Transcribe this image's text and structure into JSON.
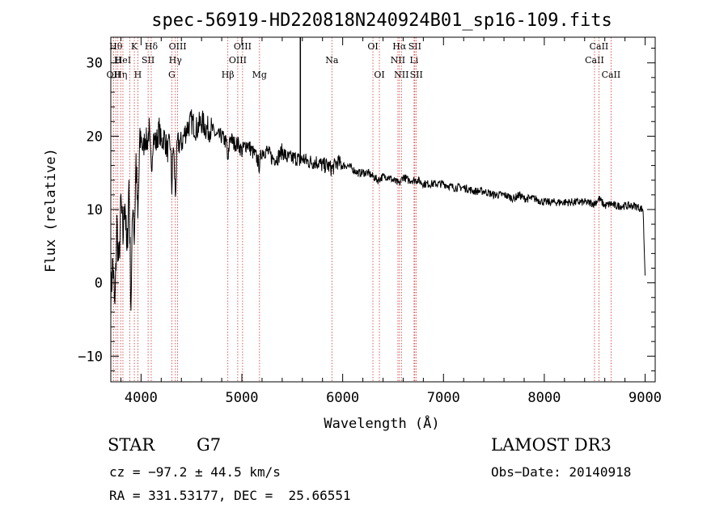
{
  "chart_data": {
    "type": "line",
    "title": "spec-56919-HD220818N240924B01_sp16-109.fits",
    "xlabel": "Wavelength (Å)",
    "ylabel": "Flux (relative)",
    "xlim": [
      3700,
      9100
    ],
    "ylim": [
      -13.5,
      33.5
    ],
    "xticks": [
      4000,
      5000,
      6000,
      7000,
      8000,
      9000
    ],
    "xtick_labels": [
      "4000",
      "5000",
      "6000",
      "7000",
      "8000",
      "9000"
    ],
    "yticks": [
      -10,
      0,
      10,
      20,
      30
    ],
    "ytick_labels": [
      "−10",
      "0",
      "10",
      "20",
      "30"
    ],
    "grid": false,
    "series": [
      {
        "name": "flux",
        "color": "#000000",
        "x": [
          3700,
          3720,
          3740,
          3760,
          3780,
          3800,
          3820,
          3840,
          3860,
          3880,
          3900,
          3920,
          3933,
          3950,
          3968,
          3985,
          4000,
          4020,
          4040,
          4060,
          4080,
          4101,
          4120,
          4150,
          4180,
          4200,
          4230,
          4260,
          4290,
          4305,
          4320,
          4340,
          4360,
          4400,
          4450,
          4500,
          4550,
          4600,
          4650,
          4700,
          4750,
          4800,
          4850,
          4861,
          4880,
          4920,
          4960,
          5000,
          5050,
          5100,
          5150,
          5172,
          5200,
          5250,
          5300,
          5350,
          5400,
          5450,
          5500,
          5550,
          5580,
          5600,
          5650,
          5700,
          5750,
          5800,
          5850,
          5893,
          5950,
          6000,
          6050,
          6100,
          6150,
          6200,
          6250,
          6300,
          6350,
          6400,
          6450,
          6500,
          6563,
          6600,
          6650,
          6700,
          6750,
          6800,
          6900,
          7000,
          7100,
          7200,
          7300,
          7400,
          7500,
          7600,
          7700,
          7750,
          7800,
          7900,
          8000,
          8100,
          8200,
          8300,
          8400,
          8498,
          8542,
          8600,
          8662,
          8700,
          8800,
          8900,
          8980,
          9000
        ],
        "values": [
          -2,
          3,
          -4,
          8,
          2,
          11,
          6,
          12,
          3,
          14,
          -3,
          12,
          6,
          17,
          8,
          18,
          20,
          18,
          20,
          19,
          21,
          15,
          20,
          19,
          21,
          19,
          20,
          18,
          19,
          13,
          19,
          12,
          19,
          19,
          21,
          22,
          21,
          22,
          21,
          21,
          20,
          20,
          19,
          16,
          20,
          19,
          19,
          18,
          19,
          18,
          17,
          16,
          18,
          18,
          17,
          17,
          18,
          17,
          17,
          17,
          16.5,
          17,
          16.5,
          16.5,
          16.5,
          16,
          16,
          15.5,
          16.5,
          16,
          16,
          15.5,
          15,
          15,
          15,
          14.5,
          14,
          14.5,
          14.5,
          14,
          13.5,
          14.5,
          14,
          14,
          14,
          13.5,
          13.5,
          13.5,
          13,
          13,
          12.5,
          12.5,
          12,
          12,
          11.5,
          12,
          11.5,
          11.5,
          11,
          11,
          11,
          11,
          11,
          10.8,
          11.5,
          10.5,
          10.8,
          10.5,
          10.5,
          10.5,
          10,
          1
        ]
      }
    ],
    "spike": {
      "x": 5580,
      "values": [
        16.5,
        33.5
      ]
    },
    "line_markers": [
      {
        "wl": 3750,
        "label": "Hθ",
        "row": 0
      },
      {
        "wl": 3727,
        "label": "OII",
        "row": 2
      },
      {
        "wl": 3770,
        "label": "H",
        "row": 1
      },
      {
        "wl": 3798,
        "label": "Hη",
        "row": 2
      },
      {
        "wl": 3820,
        "label": "HeI",
        "row": 1
      },
      {
        "wl": 3889,
        "label": "",
        "row": 1
      },
      {
        "wl": 3933,
        "label": "K",
        "row": 0
      },
      {
        "wl": 3968,
        "label": "H",
        "row": 2
      },
      {
        "wl": 4070,
        "label": "SII",
        "row": 1
      },
      {
        "wl": 4101,
        "label": "Hδ",
        "row": 0
      },
      {
        "wl": 4305,
        "label": "G",
        "row": 2
      },
      {
        "wl": 4340,
        "label": "Hγ",
        "row": 1
      },
      {
        "wl": 4363,
        "label": "OIII",
        "row": 0
      },
      {
        "wl": 4861,
        "label": "Hβ",
        "row": 2
      },
      {
        "wl": 4959,
        "label": "OIII",
        "row": 1
      },
      {
        "wl": 5007,
        "label": "OIII",
        "row": 0
      },
      {
        "wl": 5175,
        "label": "Mg",
        "row": 2
      },
      {
        "wl": 5893,
        "label": "Na",
        "row": 1
      },
      {
        "wl": 6300,
        "label": "OI",
        "row": 0
      },
      {
        "wl": 6364,
        "label": "OI",
        "row": 2
      },
      {
        "wl": 6548,
        "label": "NII",
        "row": 1
      },
      {
        "wl": 6563,
        "label": "Hα",
        "row": 0
      },
      {
        "wl": 6583,
        "label": "NII",
        "row": 2
      },
      {
        "wl": 6708,
        "label": "Li",
        "row": 1
      },
      {
        "wl": 6716,
        "label": "SII",
        "row": 0
      },
      {
        "wl": 6731,
        "label": "SII",
        "row": 2
      },
      {
        "wl": 8498,
        "label": "CaII",
        "row": 1
      },
      {
        "wl": 8542,
        "label": "CaII",
        "row": 0
      },
      {
        "wl": 8662,
        "label": "CaII",
        "row": 2
      }
    ],
    "marker_color": "#cc3333"
  },
  "info": {
    "object_type": "STAR",
    "subclass": "G7",
    "survey": "LAMOST DR3",
    "redshift": "cz = −97.2 ± 44.5 km/s",
    "obs_date": "Obs−Date: 20140918",
    "coords": "RA = 331.53177, DEC =  25.66551"
  }
}
